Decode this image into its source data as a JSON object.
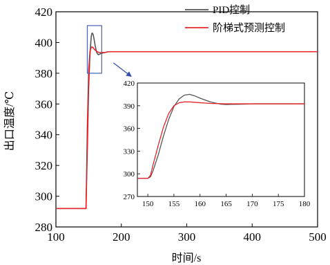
{
  "chart_data": {
    "type": "line",
    "xlabel": "时间/s",
    "ylabel": "出口温度/℃",
    "xlim": [
      100,
      500
    ],
    "ylim": [
      280,
      420
    ],
    "xticks": [
      100,
      200,
      300,
      400,
      500
    ],
    "yticks": [
      280,
      300,
      320,
      340,
      360,
      380,
      400,
      420
    ],
    "legend_position": "top-right",
    "grid": false,
    "series": [
      {
        "name": "PID控制",
        "color": "#555555",
        "x": [
          100,
          146,
          148,
          150,
          152,
          154,
          155,
          156,
          157,
          158,
          160,
          162,
          163,
          165,
          167,
          170,
          175,
          180,
          200,
          300,
          400,
          500
        ],
        "y": [
          292,
          292,
          330,
          370,
          392,
          404,
          406,
          406,
          405,
          403,
          398,
          394,
          393,
          392,
          392.5,
          393,
          393.5,
          394,
          394,
          394,
          394,
          394
        ]
      },
      {
        "name": "阶梯式预测控制",
        "color": "#e8242a",
        "x": [
          100,
          146,
          148,
          150,
          152,
          154,
          156,
          158,
          160,
          163,
          166,
          170,
          175,
          180,
          200,
          300,
          400,
          500
        ],
        "y": [
          292,
          292,
          345,
          382,
          394,
          397,
          397,
          396,
          395,
          394,
          393.5,
          393.5,
          393.5,
          394,
          394,
          394,
          394,
          394
        ]
      }
    ],
    "highlight_box": {
      "x": [
        148,
        170
      ],
      "y": [
        380,
        411
      ]
    },
    "inset": {
      "xlim": [
        148,
        180
      ],
      "ylim": [
        270,
        420
      ],
      "xticks": [
        150,
        155,
        160,
        165,
        170,
        175,
        180
      ],
      "yticks": [
        270,
        300,
        330,
        360,
        390,
        420
      ],
      "series": [
        {
          "name": "PID控制",
          "color": "#555555",
          "x": [
            148,
            150,
            150.5,
            151,
            152,
            153,
            154,
            155,
            156,
            157,
            158,
            159,
            160,
            162,
            164,
            165,
            166,
            168,
            170,
            175,
            180
          ],
          "y": [
            294,
            294,
            296,
            304,
            325,
            350,
            372,
            389,
            399,
            404,
            405,
            403,
            400,
            395,
            392,
            391.5,
            391.8,
            392,
            392.5,
            392.5,
            392.5
          ]
        },
        {
          "name": "阶梯式预测控制",
          "color": "#e8242a",
          "x": [
            148,
            150,
            150.5,
            151,
            152,
            153,
            154,
            155,
            156,
            157,
            158,
            160,
            162,
            165,
            170,
            175,
            180
          ],
          "y": [
            294,
            294,
            298,
            312,
            338,
            362,
            380,
            390,
            394,
            395,
            395,
            394,
            393,
            392.5,
            392.5,
            392.5,
            392.5
          ]
        }
      ]
    }
  }
}
